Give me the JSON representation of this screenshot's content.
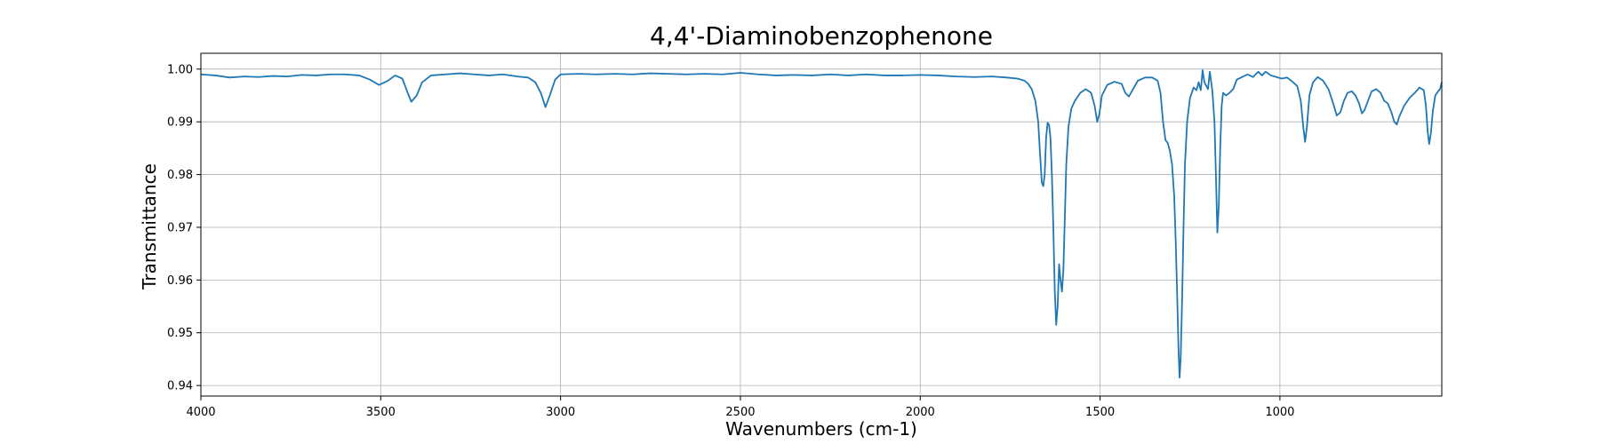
{
  "chart_data": {
    "type": "line",
    "title": "4,4'-Diaminobenzophenone",
    "xlabel": "Wavenumbers (cm-1)",
    "ylabel": "Transmittance",
    "xlim": [
      4000,
      550
    ],
    "ylim": [
      0.938,
      1.003
    ],
    "x_inverted": true,
    "grid": true,
    "x_ticks": [
      4000,
      3500,
      3000,
      2500,
      2000,
      1500,
      1000
    ],
    "y_ticks": [
      0.94,
      0.95,
      0.96,
      0.97,
      0.98,
      0.99,
      1.0
    ],
    "y_tick_labels": [
      "0.94",
      "0.95",
      "0.96",
      "0.97",
      "0.98",
      "0.99",
      "1.00"
    ],
    "series": [
      {
        "color": "#1f77b4",
        "points": [
          [
            4000,
            0.999
          ],
          [
            3960,
            0.9988
          ],
          [
            3920,
            0.9984
          ],
          [
            3880,
            0.9986
          ],
          [
            3840,
            0.9985
          ],
          [
            3800,
            0.9987
          ],
          [
            3760,
            0.9986
          ],
          [
            3720,
            0.9989
          ],
          [
            3680,
            0.9988
          ],
          [
            3640,
            0.999
          ],
          [
            3600,
            0.999
          ],
          [
            3560,
            0.9988
          ],
          [
            3530,
            0.998
          ],
          [
            3505,
            0.997
          ],
          [
            3480,
            0.9978
          ],
          [
            3460,
            0.9988
          ],
          [
            3440,
            0.9982
          ],
          [
            3425,
            0.9955
          ],
          [
            3415,
            0.9938
          ],
          [
            3400,
            0.995
          ],
          [
            3385,
            0.9975
          ],
          [
            3360,
            0.9988
          ],
          [
            3320,
            0.999
          ],
          [
            3280,
            0.9992
          ],
          [
            3240,
            0.999
          ],
          [
            3200,
            0.9988
          ],
          [
            3160,
            0.999
          ],
          [
            3120,
            0.9986
          ],
          [
            3090,
            0.9984
          ],
          [
            3070,
            0.9975
          ],
          [
            3055,
            0.9955
          ],
          [
            3042,
            0.9928
          ],
          [
            3030,
            0.995
          ],
          [
            3015,
            0.998
          ],
          [
            3000,
            0.999
          ],
          [
            2950,
            0.9991
          ],
          [
            2900,
            0.999
          ],
          [
            2850,
            0.9991
          ],
          [
            2800,
            0.999
          ],
          [
            2750,
            0.9992
          ],
          [
            2700,
            0.9991
          ],
          [
            2650,
            0.999
          ],
          [
            2600,
            0.9991
          ],
          [
            2550,
            0.999
          ],
          [
            2500,
            0.9993
          ],
          [
            2450,
            0.999
          ],
          [
            2400,
            0.9988
          ],
          [
            2350,
            0.9989
          ],
          [
            2300,
            0.9988
          ],
          [
            2250,
            0.999
          ],
          [
            2200,
            0.9988
          ],
          [
            2150,
            0.999
          ],
          [
            2100,
            0.9988
          ],
          [
            2050,
            0.9988
          ],
          [
            2000,
            0.9989
          ],
          [
            1950,
            0.9988
          ],
          [
            1900,
            0.9986
          ],
          [
            1850,
            0.9985
          ],
          [
            1800,
            0.9986
          ],
          [
            1760,
            0.9984
          ],
          [
            1730,
            0.9982
          ],
          [
            1710,
            0.9978
          ],
          [
            1700,
            0.9972
          ],
          [
            1690,
            0.9962
          ],
          [
            1680,
            0.994
          ],
          [
            1672,
            0.99
          ],
          [
            1667,
            0.984
          ],
          [
            1662,
            0.9785
          ],
          [
            1658,
            0.9778
          ],
          [
            1654,
            0.98
          ],
          [
            1650,
            0.987
          ],
          [
            1646,
            0.9898
          ],
          [
            1642,
            0.9895
          ],
          [
            1638,
            0.987
          ],
          [
            1634,
            0.98
          ],
          [
            1630,
            0.97
          ],
          [
            1626,
            0.958
          ],
          [
            1622,
            0.9515
          ],
          [
            1618,
            0.955
          ],
          [
            1614,
            0.963
          ],
          [
            1610,
            0.96
          ],
          [
            1606,
            0.9578
          ],
          [
            1602,
            0.962
          ],
          [
            1598,
            0.972
          ],
          [
            1594,
            0.982
          ],
          [
            1588,
            0.989
          ],
          [
            1580,
            0.9925
          ],
          [
            1570,
            0.994
          ],
          [
            1555,
            0.9955
          ],
          [
            1540,
            0.9962
          ],
          [
            1525,
            0.9955
          ],
          [
            1515,
            0.993
          ],
          [
            1508,
            0.99
          ],
          [
            1502,
            0.9915
          ],
          [
            1495,
            0.995
          ],
          [
            1480,
            0.997
          ],
          [
            1460,
            0.9976
          ],
          [
            1440,
            0.9972
          ],
          [
            1430,
            0.9955
          ],
          [
            1420,
            0.9948
          ],
          [
            1410,
            0.996
          ],
          [
            1395,
            0.9978
          ],
          [
            1375,
            0.9984
          ],
          [
            1355,
            0.9984
          ],
          [
            1340,
            0.9978
          ],
          [
            1332,
            0.9955
          ],
          [
            1325,
            0.99
          ],
          [
            1318,
            0.9865
          ],
          [
            1312,
            0.986
          ],
          [
            1306,
            0.9845
          ],
          [
            1300,
            0.982
          ],
          [
            1294,
            0.976
          ],
          [
            1290,
            0.968
          ],
          [
            1286,
            0.958
          ],
          [
            1282,
            0.947
          ],
          [
            1279,
            0.9415
          ],
          [
            1276,
            0.945
          ],
          [
            1272,
            0.956
          ],
          [
            1268,
            0.97
          ],
          [
            1264,
            0.982
          ],
          [
            1258,
            0.99
          ],
          [
            1250,
            0.9945
          ],
          [
            1240,
            0.9965
          ],
          [
            1232,
            0.996
          ],
          [
            1226,
            0.9975
          ],
          [
            1220,
            0.996
          ],
          [
            1215,
            0.9998
          ],
          [
            1210,
            0.9975
          ],
          [
            1200,
            0.9962
          ],
          [
            1195,
            0.9995
          ],
          [
            1188,
            0.996
          ],
          [
            1182,
            0.99
          ],
          [
            1178,
            0.98
          ],
          [
            1174,
            0.969
          ],
          [
            1170,
            0.974
          ],
          [
            1166,
            0.985
          ],
          [
            1162,
            0.993
          ],
          [
            1158,
            0.9955
          ],
          [
            1150,
            0.995
          ],
          [
            1140,
            0.9955
          ],
          [
            1130,
            0.9962
          ],
          [
            1120,
            0.998
          ],
          [
            1105,
            0.9985
          ],
          [
            1090,
            0.999
          ],
          [
            1075,
            0.9985
          ],
          [
            1060,
            0.9995
          ],
          [
            1050,
            0.9988
          ],
          [
            1040,
            0.9995
          ],
          [
            1025,
            0.9988
          ],
          [
            1010,
            0.9985
          ],
          [
            995,
            0.9982
          ],
          [
            980,
            0.9984
          ],
          [
            965,
            0.9976
          ],
          [
            952,
            0.9968
          ],
          [
            942,
            0.994
          ],
          [
            935,
            0.989
          ],
          [
            930,
            0.9862
          ],
          [
            925,
            0.989
          ],
          [
            918,
            0.995
          ],
          [
            908,
            0.9975
          ],
          [
            895,
            0.9985
          ],
          [
            880,
            0.9978
          ],
          [
            865,
            0.9962
          ],
          [
            852,
            0.9935
          ],
          [
            842,
            0.9912
          ],
          [
            832,
            0.9918
          ],
          [
            822,
            0.994
          ],
          [
            812,
            0.9955
          ],
          [
            800,
            0.9958
          ],
          [
            790,
            0.995
          ],
          [
            780,
            0.9935
          ],
          [
            772,
            0.9916
          ],
          [
            765,
            0.9922
          ],
          [
            755,
            0.994
          ],
          [
            745,
            0.9958
          ],
          [
            732,
            0.9962
          ],
          [
            720,
            0.9955
          ],
          [
            710,
            0.994
          ],
          [
            700,
            0.9935
          ],
          [
            690,
            0.9918
          ],
          [
            682,
            0.99
          ],
          [
            675,
            0.9895
          ],
          [
            668,
            0.991
          ],
          [
            655,
            0.993
          ],
          [
            640,
            0.9945
          ],
          [
            625,
            0.9955
          ],
          [
            612,
            0.9965
          ],
          [
            600,
            0.996
          ],
          [
            594,
            0.993
          ],
          [
            589,
            0.988
          ],
          [
            585,
            0.9858
          ],
          [
            580,
            0.988
          ],
          [
            575,
            0.992
          ],
          [
            568,
            0.995
          ],
          [
            560,
            0.9958
          ],
          [
            555,
            0.9962
          ],
          [
            550,
            0.9975
          ]
        ]
      }
    ]
  }
}
